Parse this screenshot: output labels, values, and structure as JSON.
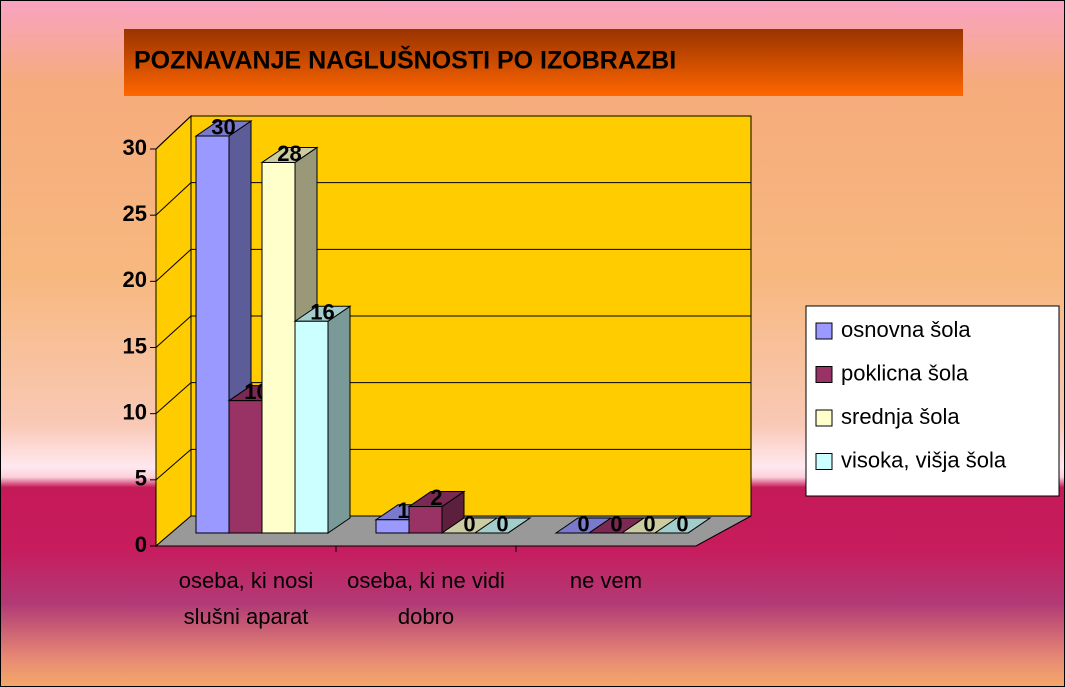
{
  "chart_data": {
    "type": "bar3d",
    "title": "POZNAVANJE NAGLUŠNOSTI PO IZOBRAZBI",
    "categories": [
      "oseba, ki nosi slušni aparat",
      "oseba, ki ne vidi dobro",
      "ne vem"
    ],
    "series": [
      {
        "name": "osnovna šola",
        "color": "#9999ff",
        "values": [
          30,
          1,
          0
        ]
      },
      {
        "name": "poklicna šola",
        "color": "#993366",
        "values": [
          10,
          2,
          0
        ]
      },
      {
        "name": "srednja šola",
        "color": "#ffffcc",
        "values": [
          28,
          0,
          0
        ]
      },
      {
        "name": "visoka, višja šola",
        "color": "#ccffff",
        "values": [
          16,
          0,
          0
        ]
      }
    ],
    "ylim": [
      0,
      30
    ],
    "yticks": [
      0,
      5,
      10,
      15,
      20,
      25,
      30
    ],
    "grid": true,
    "legend": "right"
  }
}
